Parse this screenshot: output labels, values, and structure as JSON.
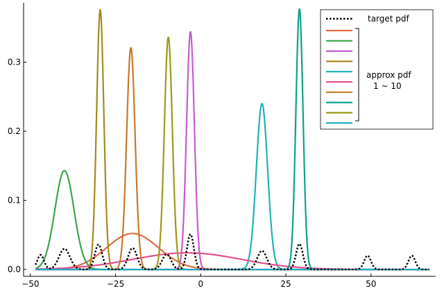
{
  "chart_data": {
    "type": "line",
    "xlim": [
      -52,
      69
    ],
    "ylim": [
      -0.01,
      0.386
    ],
    "x_ticks": [
      -50,
      -25,
      0,
      25,
      50
    ],
    "x_tick_labels": [
      "−50",
      "−25",
      "0",
      "25",
      "50"
    ],
    "y_ticks": [
      0.0,
      0.1,
      0.2,
      0.3
    ],
    "y_tick_labels": [
      "0.0",
      "0.1",
      "0.2",
      "0.3"
    ],
    "grid": false,
    "legend_position": "top-right",
    "target": {
      "name": "target pdf",
      "color": "#000000",
      "style": "dotted",
      "peaks": [
        {
          "mu": -47,
          "sigma": 1.0,
          "amp": 0.021
        },
        {
          "mu": -40,
          "sigma": 1.6,
          "amp": 0.03
        },
        {
          "mu": -30,
          "sigma": 1.1,
          "amp": 0.036
        },
        {
          "mu": -20,
          "sigma": 1.3,
          "amp": 0.031
        },
        {
          "mu": -10,
          "sigma": 1.3,
          "amp": 0.022
        },
        {
          "mu": -3,
          "sigma": 1.0,
          "amp": 0.051
        },
        {
          "mu": 18,
          "sigma": 1.4,
          "amp": 0.027
        },
        {
          "mu": 29,
          "sigma": 1.0,
          "amp": 0.037
        },
        {
          "mu": 49,
          "sigma": 1.0,
          "amp": 0.02
        },
        {
          "mu": 62,
          "sigma": 1.0,
          "amp": 0.02
        }
      ]
    },
    "approx_series": [
      {
        "color": "#e26a43",
        "mu": -20,
        "sigma": 7.6,
        "amp": 0.052
      },
      {
        "color": "#3aa64a",
        "mu": -40,
        "sigma": 2.8,
        "amp": 0.143
      },
      {
        "color": "#c45bd0",
        "mu": -3,
        "sigma": 1.15,
        "amp": 0.344
      },
      {
        "color": "#a38a1e",
        "mu": -29.5,
        "sigma": 1.06,
        "amp": 0.376
      },
      {
        "color": "#1fb3b3",
        "mu": 18,
        "sigma": 1.66,
        "amp": 0.24
      },
      {
        "color": "#e2508c",
        "mu": -4,
        "sigma": 16,
        "amp": 0.024
      },
      {
        "color": "#c8782a",
        "mu": -20.5,
        "sigma": 1.24,
        "amp": 0.321
      },
      {
        "color": "#0aa38a",
        "mu": 29,
        "sigma": 1.05,
        "amp": 0.377
      },
      {
        "color": "#9a9a1a",
        "mu": -9.5,
        "sigma": 1.18,
        "amp": 0.336
      },
      {
        "color": "#1aa8c8",
        "mu": 0,
        "sigma": 1,
        "amp": 0.0
      }
    ],
    "legend": {
      "target_label": "target pdf",
      "approx_label_line1": "approx pdf",
      "approx_label_line2": "1 ~ 10"
    }
  }
}
